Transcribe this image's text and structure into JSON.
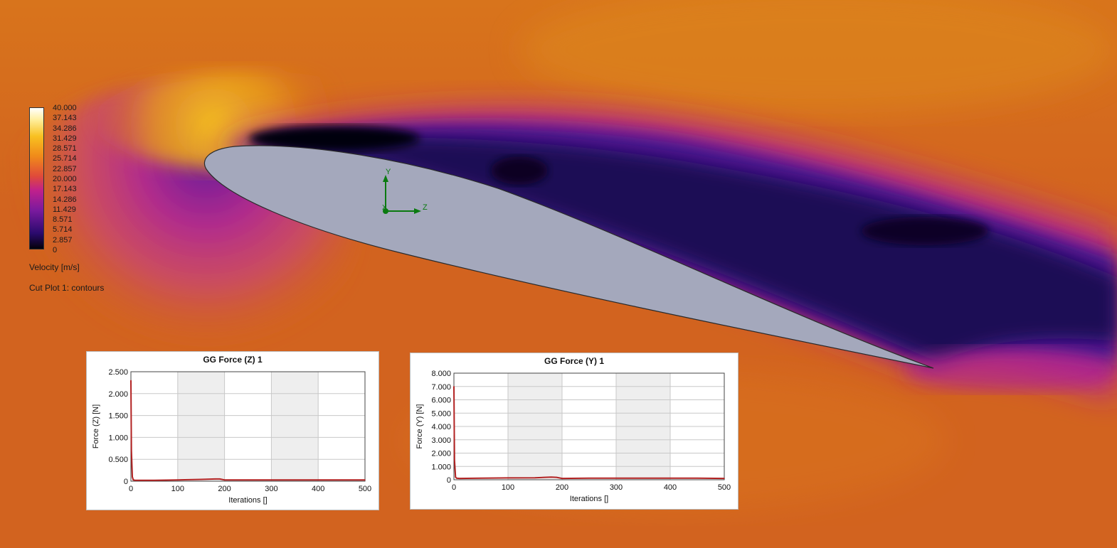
{
  "legend": {
    "ticks": [
      "40.000",
      "37.143",
      "34.286",
      "31.429",
      "28.571",
      "25.714",
      "22.857",
      "20.000",
      "17.143",
      "14.286",
      "11.429",
      "8.571",
      "5.714",
      "2.857",
      "0"
    ],
    "quantity_label": "Velocity [m/s]",
    "plot_label": "Cut Plot 1: contours",
    "colors": [
      "#000000",
      "#2b0a6e",
      "#7a1a9e",
      "#c0208c",
      "#e04a3a",
      "#f08a1a",
      "#f8c020",
      "#fff0a0",
      "#ffffff"
    ]
  },
  "triad": {
    "y_label": "Y",
    "z_label": "Z",
    "x_label": "X"
  },
  "charts": [
    {
      "title": "GG Force (Z) 1",
      "xlabel": "Iterations []",
      "ylabel": "Force (Z) [N]",
      "x_ticks": [
        "0",
        "100",
        "200",
        "300",
        "400",
        "500"
      ],
      "y_ticks": [
        "0",
        "0.500",
        "1.000",
        "1.500",
        "2.000",
        "2.500"
      ]
    },
    {
      "title": "GG Force (Y) 1",
      "xlabel": "Iterations []",
      "ylabel": "Force (Y) [N]",
      "x_ticks": [
        "0",
        "100",
        "200",
        "300",
        "400",
        "500"
      ],
      "y_ticks": [
        "0",
        "1.000",
        "2.000",
        "3.000",
        "4.000",
        "5.000",
        "6.000",
        "7.000",
        "8.000"
      ]
    }
  ],
  "chart_data": [
    {
      "type": "line",
      "title": "GG Force (Z) 1",
      "xlabel": "Iterations []",
      "ylabel": "Force (Z) [N]",
      "xlim": [
        0,
        500
      ],
      "ylim": [
        0,
        2.5
      ],
      "grid": true,
      "x": [
        0,
        1,
        3,
        5,
        10,
        50,
        100,
        150,
        180,
        190,
        200,
        250,
        300,
        350,
        400,
        450,
        500
      ],
      "values": [
        2.3,
        0.7,
        0.1,
        0.03,
        0.02,
        0.02,
        0.03,
        0.04,
        0.05,
        0.05,
        0.03,
        0.03,
        0.03,
        0.03,
        0.03,
        0.03,
        0.03
      ]
    },
    {
      "type": "line",
      "title": "GG Force (Y) 1",
      "xlabel": "Iterations []",
      "ylabel": "Force (Y) [N]",
      "xlim": [
        0,
        500
      ],
      "ylim": [
        0,
        8
      ],
      "grid": true,
      "x": [
        0,
        1,
        3,
        5,
        10,
        50,
        100,
        150,
        180,
        190,
        200,
        250,
        300,
        350,
        400,
        450,
        500
      ],
      "values": [
        7.0,
        1.5,
        0.2,
        0.12,
        0.1,
        0.12,
        0.14,
        0.15,
        0.2,
        0.18,
        0.1,
        0.12,
        0.12,
        0.12,
        0.12,
        0.12,
        0.1
      ]
    }
  ]
}
